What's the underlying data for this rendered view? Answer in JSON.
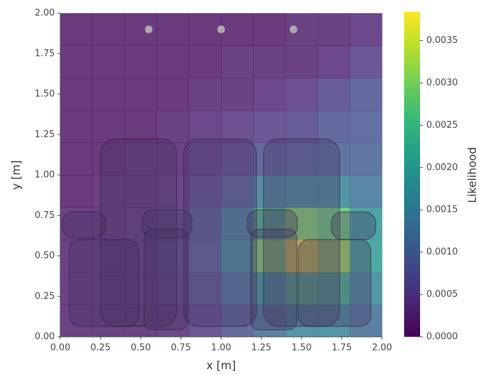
{
  "chart_data": {
    "type": "heatmap",
    "xlabel": "x [m]",
    "ylabel": "y [m]",
    "xlim": [
      0,
      2
    ],
    "ylim": [
      0,
      2
    ],
    "xticks": [
      {
        "value": 0,
        "label": "0.00"
      },
      {
        "value": 0.25,
        "label": "0.25"
      },
      {
        "value": 0.5,
        "label": "0.50"
      },
      {
        "value": 0.75,
        "label": "0.75"
      },
      {
        "value": 1,
        "label": "1.00"
      },
      {
        "value": 1.25,
        "label": "1.25"
      },
      {
        "value": 1.5,
        "label": "1.50"
      },
      {
        "value": 1.75,
        "label": "1.75"
      },
      {
        "value": 2,
        "label": "2.00"
      }
    ],
    "yticks": [
      {
        "value": 0,
        "label": "0.00"
      },
      {
        "value": 0.25,
        "label": "0.25"
      },
      {
        "value": 0.5,
        "label": "0.50"
      },
      {
        "value": 0.75,
        "label": "0.75"
      },
      {
        "value": 1,
        "label": "1.00"
      },
      {
        "value": 1.25,
        "label": "1.25"
      },
      {
        "value": 1.5,
        "label": "1.50"
      },
      {
        "value": 1.75,
        "label": "1.75"
      },
      {
        "value": 2,
        "label": "2.00"
      }
    ],
    "x": [
      0.1,
      0.3,
      0.5,
      0.7,
      0.9,
      1.1,
      1.3,
      1.5,
      1.7,
      1.9
    ],
    "y": [
      0.1,
      0.3,
      0.5,
      0.7,
      0.9,
      1.1,
      1.3,
      1.5,
      1.7,
      1.9
    ],
    "z": [
      [
        0.0002,
        0.0002,
        0.0002,
        0.0003,
        0.0005,
        0.0008,
        0.0012,
        0.0016,
        0.0016,
        0.0012
      ],
      [
        0.0002,
        0.0002,
        0.0003,
        0.0004,
        0.0007,
        0.0012,
        0.002,
        0.0026,
        0.0024,
        0.0016
      ],
      [
        0.0002,
        0.0002,
        0.0003,
        0.0005,
        0.0009,
        0.0017,
        0.003,
        0.0037,
        0.0032,
        0.002
      ],
      [
        0.0002,
        0.0002,
        0.0003,
        0.0004,
        0.0008,
        0.0014,
        0.0025,
        0.003,
        0.0028,
        0.0019
      ],
      [
        0.0001,
        0.0002,
        0.0002,
        0.0003,
        0.0006,
        0.0009,
        0.0014,
        0.0016,
        0.0016,
        0.0013
      ],
      [
        0.0001,
        0.0001,
        0.0002,
        0.0002,
        0.0004,
        0.0006,
        0.0008,
        0.0009,
        0.001,
        0.001
      ],
      [
        0.0001,
        0.0001,
        0.0001,
        0.0002,
        0.0003,
        0.0004,
        0.0005,
        0.0006,
        0.0008,
        0.0009
      ],
      [
        0.0001,
        0.0001,
        0.0001,
        0.0001,
        0.0002,
        0.0002,
        0.0003,
        0.0004,
        0.0006,
        0.0008
      ],
      [
        0.0001,
        0.0001,
        0.0001,
        0.0001,
        0.0001,
        0.0002,
        0.0002,
        0.0002,
        0.0003,
        0.0005
      ],
      [
        0.0001,
        0.0001,
        0.0001,
        0.0001,
        0.0001,
        0.0001,
        0.0001,
        0.0002,
        0.0002,
        0.0003
      ]
    ],
    "colormap": "viridis",
    "points": {
      "x": [
        0.55,
        1.0,
        1.45
      ],
      "y": [
        1.9,
        1.9,
        1.9
      ],
      "color": "#aaaaaa"
    },
    "colorbar": {
      "label": "Likelihood",
      "lim": [
        0,
        0.00384
      ],
      "ticks": [
        {
          "value": 0,
          "label": "0.0000"
        },
        {
          "value": 0.0005,
          "label": "0.0005"
        },
        {
          "value": 0.001,
          "label": "0.0010"
        },
        {
          "value": 0.0015,
          "label": "0.0015"
        },
        {
          "value": 0.002,
          "label": "0.0020"
        },
        {
          "value": 0.0025,
          "label": "0.0025"
        },
        {
          "value": 0.003,
          "label": "0.0030"
        },
        {
          "value": 0.0035,
          "label": "0.0035"
        }
      ]
    }
  }
}
